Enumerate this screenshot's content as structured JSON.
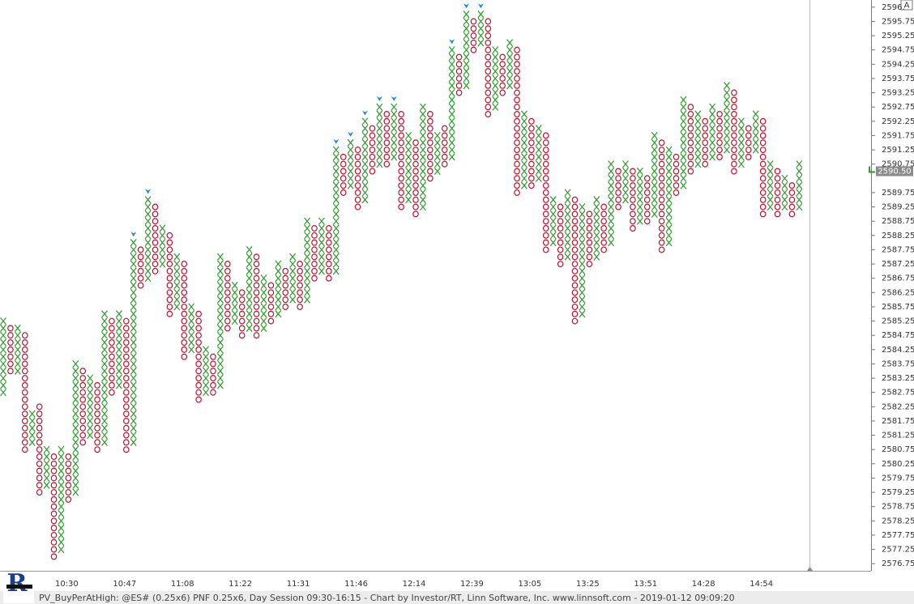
{
  "chart_data": {
    "type": "pnf",
    "box_size": 0.25,
    "ylim": [
      2576.5,
      2596.5
    ],
    "yticks": [
      {
        "value": 2596.25,
        "label": "2596."
      },
      2595.75,
      2595.25,
      2594.75,
      2594.25,
      2593.75,
      2593.25,
      2592.75,
      2592.25,
      2591.75,
      2591.25,
      2590.75,
      2589.75,
      2589.25,
      2588.75,
      2588.25,
      2587.75,
      2587.25,
      2586.75,
      2586.25,
      2585.75,
      2585.25,
      2584.75,
      2584.25,
      2583.75,
      2583.25,
      2582.75,
      2582.25,
      2581.75,
      2581.25,
      2580.75,
      2580.25,
      2579.75,
      2579.25,
      2578.75,
      2578.25,
      2577.75,
      2577.25,
      2576.75
    ],
    "x_color": "#2e9e2e",
    "o_color": "#c8102e",
    "signal_color": "#1e88e5",
    "current_price": {
      "value": 2590.5,
      "label": "2590.50"
    },
    "scale_button": "A",
    "logo": "R",
    "footer": "PV_BuyPerAtHigh: @ES# (0.25x6) PNF 0.25x6, Day Session 09:30-16:15 - Chart by Investor/RT, Linn Software, Inc. www.linnsoft.com - 2019-01-12 09:09:20",
    "columns": [
      {
        "box": "X",
        "low": 2582.75,
        "high": 2585.25
      },
      {
        "box": "O",
        "low": 2583.5,
        "high": 2585.0
      },
      {
        "box": "X",
        "low": 2583.5,
        "high": 2585.0
      },
      {
        "box": "O",
        "low": 2580.75,
        "high": 2584.75
      },
      {
        "box": "X",
        "low": 2581.0,
        "high": 2582.0
      },
      {
        "box": "O",
        "low": 2579.25,
        "high": 2582.25
      },
      {
        "box": "X",
        "low": 2579.5,
        "high": 2580.75
      },
      {
        "box": "O",
        "low": 2577.0,
        "high": 2580.5
      },
      {
        "box": "X",
        "low": 2577.25,
        "high": 2580.75
      },
      {
        "box": "O",
        "low": 2579.0,
        "high": 2580.5,
        "time": "10:30"
      },
      {
        "box": "X",
        "low": 2579.25,
        "high": 2583.75
      },
      {
        "box": "O",
        "low": 2581.0,
        "high": 2583.5
      },
      {
        "box": "X",
        "low": 2581.25,
        "high": 2583.25
      },
      {
        "box": "O",
        "low": 2580.75,
        "high": 2583.0
      },
      {
        "box": "X",
        "low": 2581.0,
        "high": 2585.5
      },
      {
        "box": "O",
        "low": 2582.75,
        "high": 2585.25
      },
      {
        "box": "X",
        "low": 2583.0,
        "high": 2585.5
      },
      {
        "box": "O",
        "low": 2580.75,
        "high": 2585.25,
        "time": "10:47"
      },
      {
        "box": "X",
        "low": 2581.0,
        "high": 2588.0,
        "signal": true
      },
      {
        "box": "O",
        "low": 2586.5,
        "high": 2587.75
      },
      {
        "box": "X",
        "low": 2586.75,
        "high": 2589.5,
        "signal": true
      },
      {
        "box": "O",
        "low": 2587.0,
        "high": 2589.25
      },
      {
        "box": "X",
        "low": 2587.25,
        "high": 2588.5
      },
      {
        "box": "O",
        "low": 2585.5,
        "high": 2588.25
      },
      {
        "box": "X",
        "low": 2585.75,
        "high": 2587.5
      },
      {
        "box": "O",
        "low": 2584.0,
        "high": 2587.25,
        "time": "11:08"
      },
      {
        "box": "X",
        "low": 2584.25,
        "high": 2585.75
      },
      {
        "box": "O",
        "low": 2582.5,
        "high": 2585.5
      },
      {
        "box": "X",
        "low": 2582.75,
        "high": 2584.25
      },
      {
        "box": "O",
        "low": 2582.75,
        "high": 2584.0
      },
      {
        "box": "X",
        "low": 2583.0,
        "high": 2587.5
      },
      {
        "box": "O",
        "low": 2585.0,
        "high": 2587.25
      },
      {
        "box": "X",
        "low": 2585.25,
        "high": 2586.5
      },
      {
        "box": "O",
        "low": 2584.75,
        "high": 2586.25,
        "time": "11:22"
      },
      {
        "box": "X",
        "low": 2585.0,
        "high": 2587.75
      },
      {
        "box": "O",
        "low": 2584.75,
        "high": 2587.5
      },
      {
        "box": "X",
        "low": 2585.0,
        "high": 2586.75
      },
      {
        "box": "O",
        "low": 2585.25,
        "high": 2586.5
      },
      {
        "box": "X",
        "low": 2585.5,
        "high": 2587.25
      },
      {
        "box": "O",
        "low": 2585.75,
        "high": 2587.0
      },
      {
        "box": "X",
        "low": 2586.0,
        "high": 2587.5
      },
      {
        "box": "O",
        "low": 2585.75,
        "high": 2587.25,
        "time": "11:31"
      },
      {
        "box": "X",
        "low": 2586.0,
        "high": 2588.75
      },
      {
        "box": "O",
        "low": 2586.75,
        "high": 2588.5
      },
      {
        "box": "X",
        "low": 2587.0,
        "high": 2588.75
      },
      {
        "box": "O",
        "low": 2586.75,
        "high": 2588.5
      },
      {
        "box": "X",
        "low": 2587.0,
        "high": 2591.25,
        "signal": true
      },
      {
        "box": "O",
        "low": 2589.75,
        "high": 2591.0
      },
      {
        "box": "X",
        "low": 2590.0,
        "high": 2591.5,
        "signal": true
      },
      {
        "box": "O",
        "low": 2589.25,
        "high": 2591.25,
        "time": "11:46"
      },
      {
        "box": "X",
        "low": 2589.5,
        "high": 2592.25,
        "signal": true
      },
      {
        "box": "O",
        "low": 2590.5,
        "high": 2592.0
      },
      {
        "box": "X",
        "low": 2590.75,
        "high": 2592.75,
        "signal": true
      },
      {
        "box": "O",
        "low": 2590.75,
        "high": 2592.5
      },
      {
        "box": "X",
        "low": 2591.0,
        "high": 2592.75,
        "signal": true
      },
      {
        "box": "O",
        "low": 2589.25,
        "high": 2592.5
      },
      {
        "box": "X",
        "low": 2589.5,
        "high": 2591.75
      },
      {
        "box": "O",
        "low": 2589.0,
        "high": 2591.5,
        "time": "12:14"
      },
      {
        "box": "X",
        "low": 2589.25,
        "high": 2592.75
      },
      {
        "box": "O",
        "low": 2590.25,
        "high": 2592.5
      },
      {
        "box": "X",
        "low": 2590.5,
        "high": 2591.75
      },
      {
        "box": "O",
        "low": 2590.75,
        "high": 2592.0
      },
      {
        "box": "X",
        "low": 2591.0,
        "high": 2594.75,
        "signal": true
      },
      {
        "box": "O",
        "low": 2593.25,
        "high": 2594.5
      },
      {
        "box": "X",
        "low": 2593.5,
        "high": 2596.0,
        "signal": true
      },
      {
        "box": "O",
        "low": 2594.75,
        "high": 2595.75,
        "time": "12:39"
      },
      {
        "box": "X",
        "low": 2595.0,
        "high": 2596.0,
        "signal": true
      },
      {
        "box": "O",
        "low": 2592.5,
        "high": 2595.75
      },
      {
        "box": "X",
        "low": 2592.75,
        "high": 2594.75
      },
      {
        "box": "O",
        "low": 2593.25,
        "high": 2594.5
      },
      {
        "box": "X",
        "low": 2593.5,
        "high": 2595.0
      },
      {
        "box": "O",
        "low": 2589.75,
        "high": 2594.75
      },
      {
        "box": "X",
        "low": 2590.0,
        "high": 2592.5
      },
      {
        "box": "O",
        "low": 2590.0,
        "high": 2592.25,
        "time": "13:05"
      },
      {
        "box": "X",
        "low": 2590.25,
        "high": 2592.0
      },
      {
        "box": "O",
        "low": 2587.75,
        "high": 2591.75
      },
      {
        "box": "X",
        "low": 2588.0,
        "high": 2589.5
      },
      {
        "box": "O",
        "low": 2587.25,
        "high": 2589.25
      },
      {
        "box": "X",
        "low": 2587.5,
        "high": 2589.75
      },
      {
        "box": "O",
        "low": 2585.25,
        "high": 2589.5
      },
      {
        "box": "X",
        "low": 2585.5,
        "high": 2589.25
      },
      {
        "box": "O",
        "low": 2587.25,
        "high": 2589.0,
        "time": "13:25"
      },
      {
        "box": "X",
        "low": 2587.5,
        "high": 2589.5
      },
      {
        "box": "O",
        "low": 2587.75,
        "high": 2589.25
      },
      {
        "box": "X",
        "low": 2588.0,
        "high": 2590.75
      },
      {
        "box": "O",
        "low": 2589.25,
        "high": 2590.5
      },
      {
        "box": "X",
        "low": 2589.5,
        "high": 2590.75
      },
      {
        "box": "O",
        "low": 2588.5,
        "high": 2590.5
      },
      {
        "box": "X",
        "low": 2588.75,
        "high": 2590.5
      },
      {
        "box": "O",
        "low": 2588.75,
        "high": 2590.25,
        "time": "13:51"
      },
      {
        "box": "X",
        "low": 2589.0,
        "high": 2591.75
      },
      {
        "box": "O",
        "low": 2587.75,
        "high": 2591.5
      },
      {
        "box": "X",
        "low": 2588.0,
        "high": 2591.25
      },
      {
        "box": "O",
        "low": 2589.75,
        "high": 2591.0
      },
      {
        "box": "X",
        "low": 2590.0,
        "high": 2593.0
      },
      {
        "box": "O",
        "low": 2590.5,
        "high": 2592.75
      },
      {
        "box": "X",
        "low": 2590.75,
        "high": 2592.5
      },
      {
        "box": "O",
        "low": 2590.75,
        "high": 2592.25,
        "time": "14:28"
      },
      {
        "box": "X",
        "low": 2591.0,
        "high": 2592.75
      },
      {
        "box": "O",
        "low": 2591.0,
        "high": 2592.5
      },
      {
        "box": "X",
        "low": 2591.25,
        "high": 2593.5
      },
      {
        "box": "O",
        "low": 2590.5,
        "high": 2593.25
      },
      {
        "box": "X",
        "low": 2590.75,
        "high": 2592.25
      },
      {
        "box": "O",
        "low": 2591.0,
        "high": 2592.0
      },
      {
        "box": "X",
        "low": 2591.25,
        "high": 2592.5
      },
      {
        "box": "O",
        "low": 2589.0,
        "high": 2592.25,
        "time": "14:54"
      },
      {
        "box": "X",
        "low": 2589.25,
        "high": 2590.75
      },
      {
        "box": "O",
        "low": 2589.0,
        "high": 2590.5
      },
      {
        "box": "X",
        "low": 2589.25,
        "high": 2590.25
      },
      {
        "box": "O",
        "low": 2589.0,
        "high": 2590.0
      },
      {
        "box": "X",
        "low": 2589.25,
        "high": 2590.75
      }
    ]
  }
}
